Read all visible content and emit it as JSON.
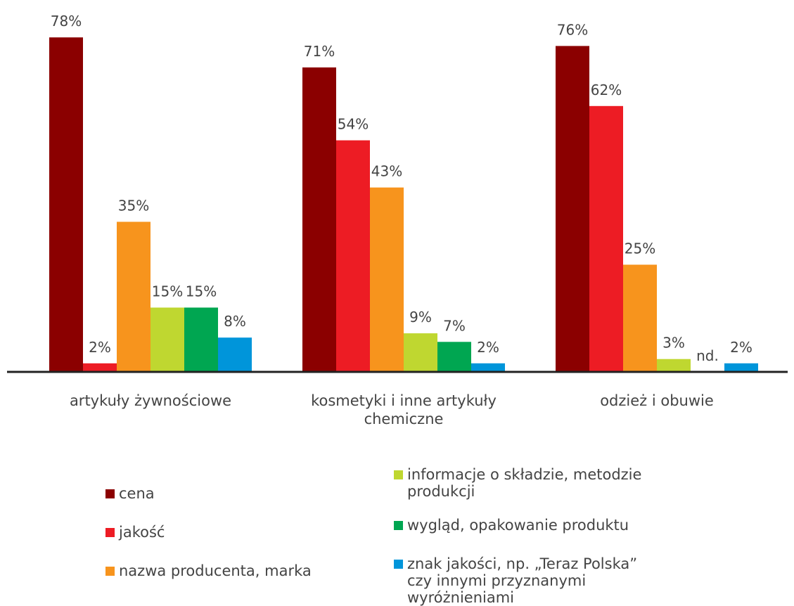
{
  "chart_data": {
    "type": "bar",
    "categories": [
      "artykuły żywnościowe",
      "kosmetyki i inne artykuły chemiczne",
      "odzież i obuwie"
    ],
    "ylim": [
      0,
      80
    ],
    "legend": "bottom",
    "series": [
      {
        "name": "cena",
        "color": "#8b0000",
        "values": [
          78,
          71,
          76
        ],
        "value_labels": [
          "78%",
          "71%",
          "76%"
        ]
      },
      {
        "name": "jakość",
        "color": "#ed1c24",
        "values": [
          2,
          54,
          62
        ],
        "value_labels": [
          "2%",
          "54%",
          "62%"
        ]
      },
      {
        "name": "nazwa producenta, marka",
        "color": "#f7941d",
        "values": [
          35,
          43,
          25
        ],
        "value_labels": [
          "35%",
          "43%",
          "25%"
        ]
      },
      {
        "name": "informacje o składzie, metodzie produkcji",
        "color": "#bfd730",
        "values": [
          15,
          9,
          3
        ],
        "value_labels": [
          "15%",
          "9%",
          "3%"
        ]
      },
      {
        "name": "wygląd, opakowanie produktu",
        "color": "#00a651",
        "values": [
          15,
          7,
          null
        ],
        "value_labels": [
          "15%",
          "7%",
          "nd."
        ]
      },
      {
        "name": "znak jakości, np. „Teraz Polska” czy innymi przyznanymi wyróżnieniami",
        "color": "#0095da",
        "values": [
          8,
          2,
          2
        ],
        "value_labels": [
          "8%",
          "2%",
          "2%"
        ]
      }
    ]
  }
}
